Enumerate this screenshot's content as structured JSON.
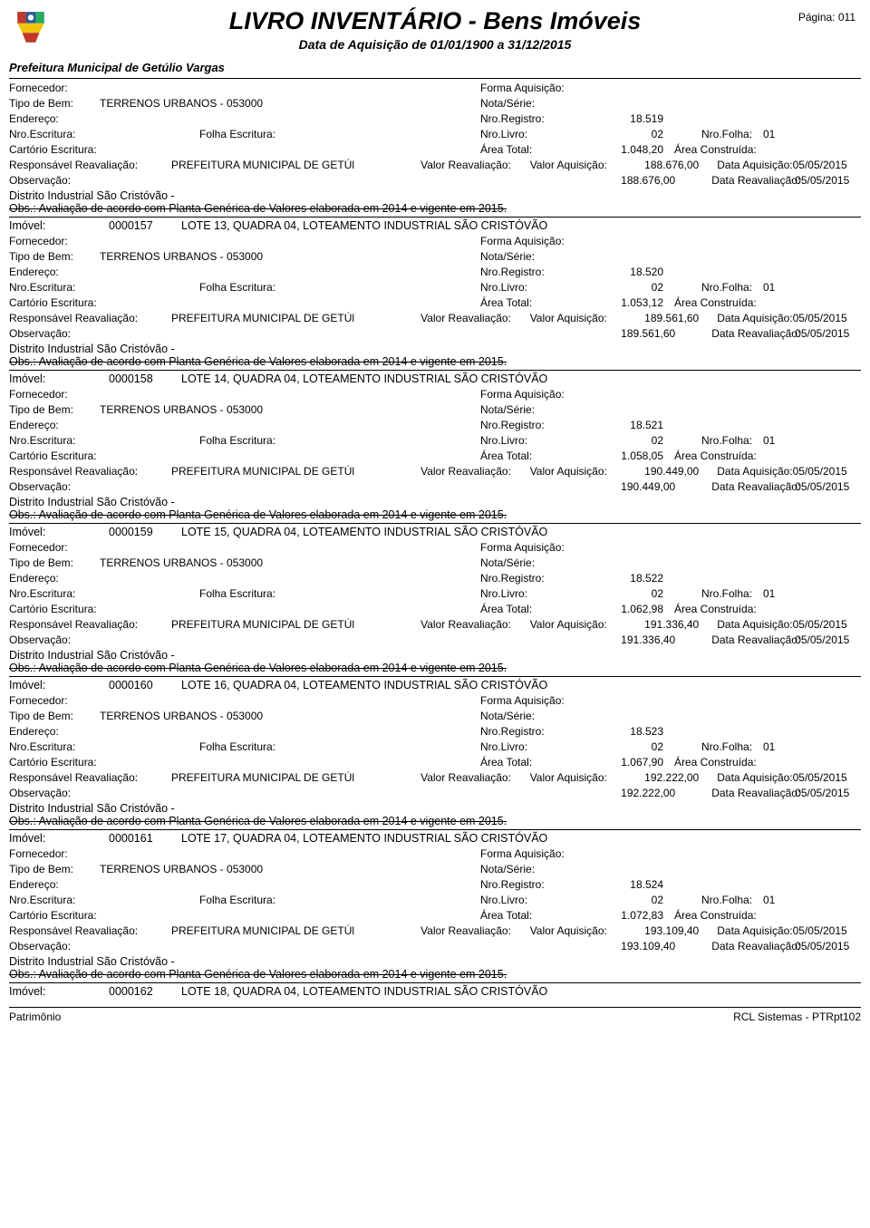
{
  "header": {
    "title": "LIVRO INVENTÁRIO - Bens Imóveis",
    "subtitle": "Data de Aquisição de 01/01/1900 a 31/12/2015",
    "page_label": "Página:",
    "page_num": "011",
    "entity": "Prefeitura Municipal de Getúlio Vargas"
  },
  "labels": {
    "fornecedor": "Fornecedor:",
    "forma_aquisicao": "Forma Aquisição:",
    "tipo_bem": "Tipo de Bem:",
    "nota_serie": "Nota/Série:",
    "endereco": "Endereço:",
    "nro_registro": "Nro.Registro:",
    "nro_escritura": "Nro.Escritura:",
    "folha_escritura": "Folha Escritura:",
    "nro_livro": "Nro.Livro:",
    "nro_folha": "Nro.Folha:",
    "cartorio": "Cartório Escritura:",
    "area_total": "Área Total:",
    "area_construida": "Área Construída:",
    "responsavel": "Responsável Reavaliação:",
    "valor_reavaliacao": "Valor Reavaliação:",
    "valor_aquisicao": "Valor Aquisição:",
    "data_aquisicao": "Data Aquisição:",
    "observacao": "Observação:",
    "data_reavaliacao": "Data Reavaliação:",
    "imovel": "Imóvel:",
    "distrito": "Distrito Industrial São Cristóvão -",
    "obs_text": "Obs.: Avaliação de acordo com Planta Genérica de Valores elaborada em 2014 e vigente em 2015."
  },
  "common": {
    "tipo_bem": "TERRENOS URBANOS - 053000",
    "responsavel": "PREFEITURA MUNICIPAL DE GETÚl",
    "nro_livro": "02",
    "nro_folha": "01",
    "data_aquisicao": "05/05/2015",
    "data_reavaliacao": "05/05/2015"
  },
  "records": [
    {
      "imovel_id": "",
      "imovel_desc": "",
      "nro_registro": "18.519",
      "area_total": "1.048,20",
      "valor_aquisicao": "188.676,00",
      "valor_reav_amt": "188.676,00"
    },
    {
      "imovel_id": "0000157",
      "imovel_desc": "LOTE 13, QUADRA 04, LOTEAMENTO INDUSTRIAL SÃO CRISTÓVÃO",
      "nro_registro": "18.520",
      "area_total": "1.053,12",
      "valor_aquisicao": "189.561,60",
      "valor_reav_amt": "189.561,60"
    },
    {
      "imovel_id": "0000158",
      "imovel_desc": "LOTE 14, QUADRA 04, LOTEAMENTO INDUSTRIAL SÃO CRISTÓVÃO",
      "nro_registro": "18.521",
      "area_total": "1.058,05",
      "valor_aquisicao": "190.449,00",
      "valor_reav_amt": "190.449,00"
    },
    {
      "imovel_id": "0000159",
      "imovel_desc": "LOTE 15, QUADRA 04, LOTEAMENTO INDUSTRIAL SÃO CRISTÓVÃO",
      "nro_registro": "18.522",
      "area_total": "1.062,98",
      "valor_aquisicao": "191.336,40",
      "valor_reav_amt": "191.336,40"
    },
    {
      "imovel_id": "0000160",
      "imovel_desc": "LOTE 16, QUADRA 04, LOTEAMENTO INDUSTRIAL SÃO CRISTÓVÃO",
      "nro_registro": "18.523",
      "area_total": "1.067,90",
      "valor_aquisicao": "192.222,00",
      "valor_reav_amt": "192.222,00"
    },
    {
      "imovel_id": "0000161",
      "imovel_desc": "LOTE 17, QUADRA 04, LOTEAMENTO INDUSTRIAL SÃO CRISTÓVÃO",
      "nro_registro": "18.524",
      "area_total": "1.072,83",
      "valor_aquisicao": "193.109,40",
      "valor_reav_amt": "193.109,40"
    }
  ],
  "tail": {
    "imovel_id": "0000162",
    "imovel_desc": "LOTE 18, QUADRA 04, LOTEAMENTO INDUSTRIAL SÃO CRISTÓVÃO"
  },
  "footer": {
    "left": "Patrimônio",
    "right": "RCL Sistemas - PTRpt102"
  }
}
